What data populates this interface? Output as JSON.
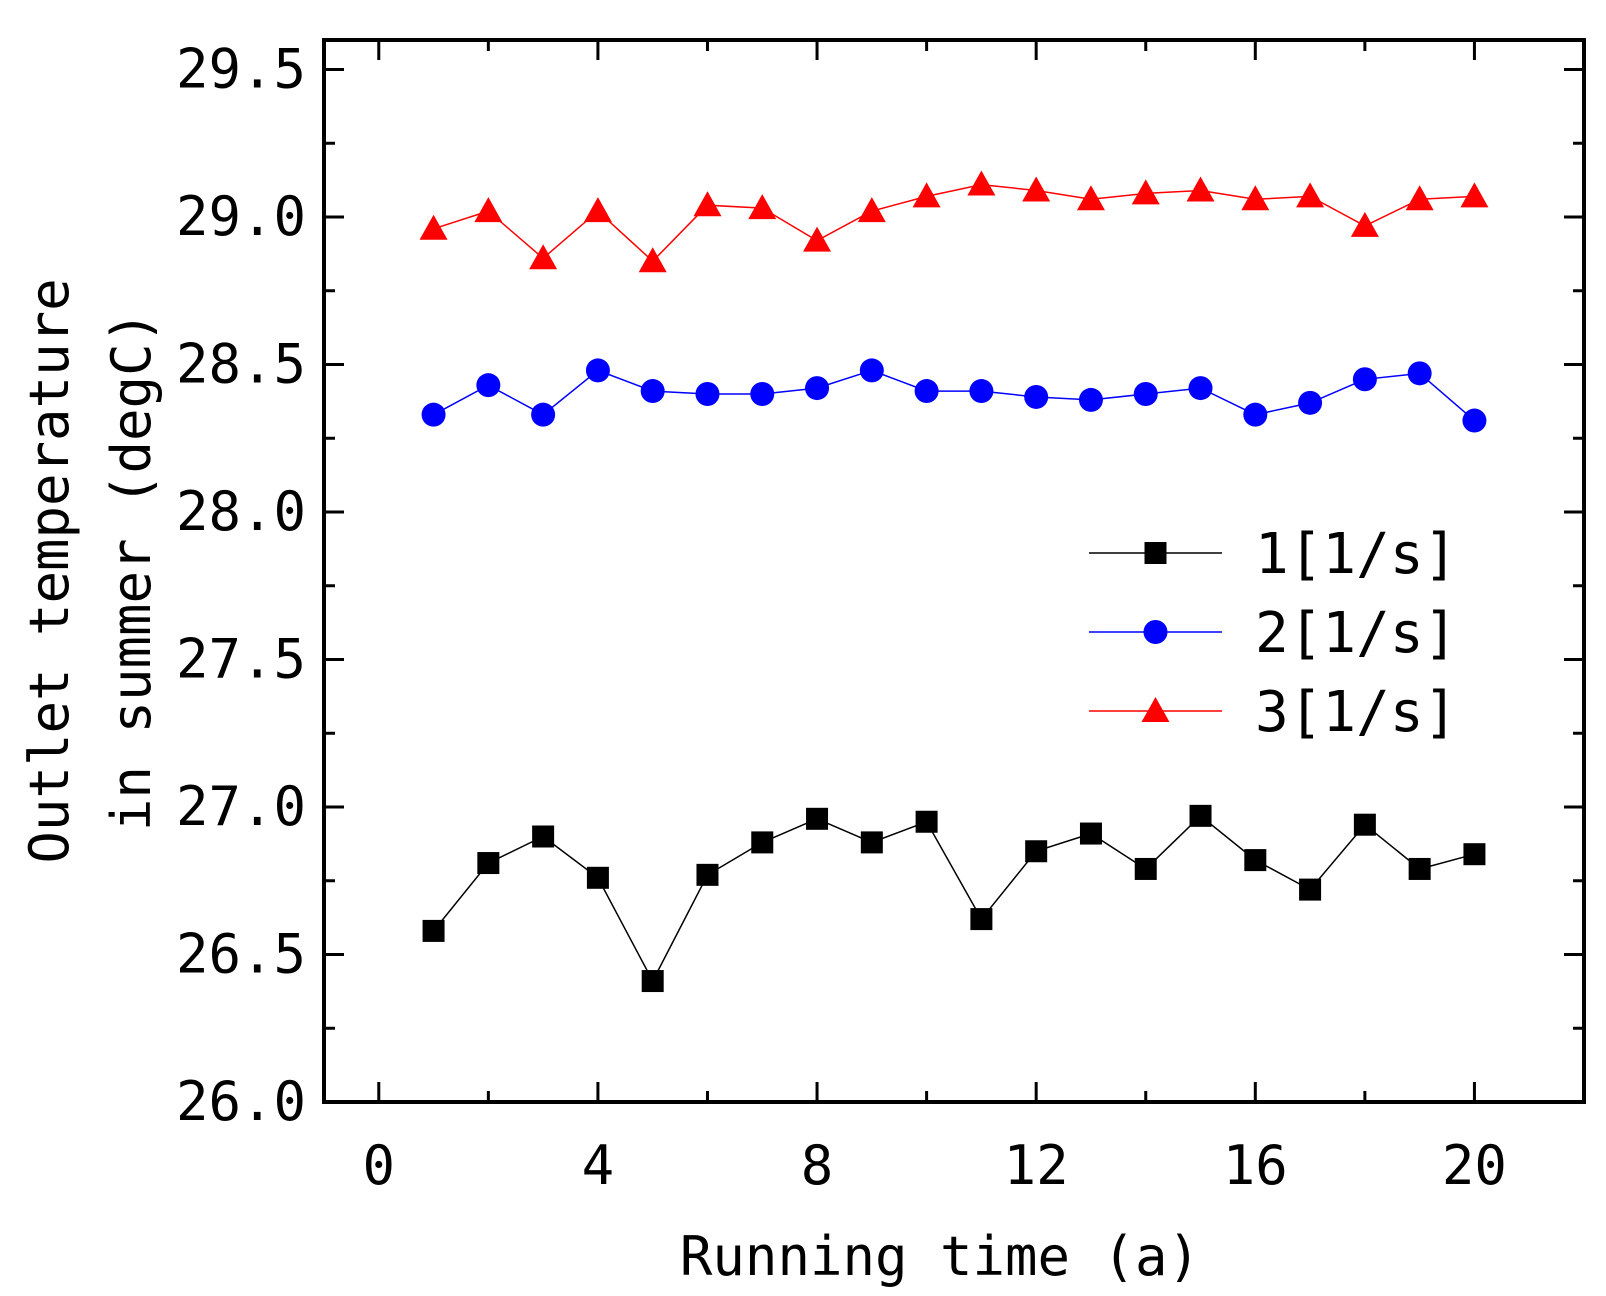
{
  "chart_data": {
    "type": "line",
    "title": "",
    "xlabel": "Running time (a)",
    "ylabel_lines": [
      "Outlet temperature",
      "in summer (degC)"
    ],
    "xlim": [
      -1,
      22
    ],
    "ylim": [
      26.0,
      29.6
    ],
    "xticks": [
      0,
      4,
      8,
      12,
      16,
      20
    ],
    "xtick_labels": [
      "0",
      "4",
      "8",
      "12",
      "16",
      "20"
    ],
    "yticks": [
      26.0,
      26.5,
      27.0,
      27.5,
      28.0,
      28.5,
      29.0,
      29.5
    ],
    "ytick_labels": [
      "26.0",
      "26.5",
      "27.0",
      "27.5",
      "28.0",
      "28.5",
      "29.0",
      "29.5"
    ],
    "x": [
      1,
      2,
      3,
      4,
      5,
      6,
      7,
      8,
      9,
      10,
      11,
      12,
      13,
      14,
      15,
      16,
      17,
      18,
      19,
      20
    ],
    "series": [
      {
        "name": "1[1/s]",
        "color": "#000000",
        "marker": "square",
        "values": [
          26.58,
          26.81,
          26.9,
          26.76,
          26.41,
          26.77,
          26.88,
          26.96,
          26.88,
          26.95,
          26.62,
          26.85,
          26.91,
          26.79,
          26.97,
          26.82,
          26.72,
          26.94,
          26.79,
          26.84
        ]
      },
      {
        "name": "2[1/s]",
        "color": "#0000ff",
        "marker": "circle",
        "values": [
          28.33,
          28.43,
          28.33,
          28.48,
          28.41,
          28.4,
          28.4,
          28.42,
          28.48,
          28.41,
          28.41,
          28.39,
          28.38,
          28.4,
          28.42,
          28.33,
          28.37,
          28.45,
          28.47,
          28.31
        ]
      },
      {
        "name": "3[1/s]",
        "color": "#ff0000",
        "marker": "triangle",
        "values": [
          28.96,
          29.02,
          28.86,
          29.02,
          28.85,
          29.04,
          29.03,
          28.92,
          29.02,
          29.07,
          29.11,
          29.09,
          29.06,
          29.08,
          29.09,
          29.06,
          29.07,
          28.97,
          29.06,
          29.07
        ]
      }
    ],
    "legend_position": "center-right",
    "grid": false
  }
}
